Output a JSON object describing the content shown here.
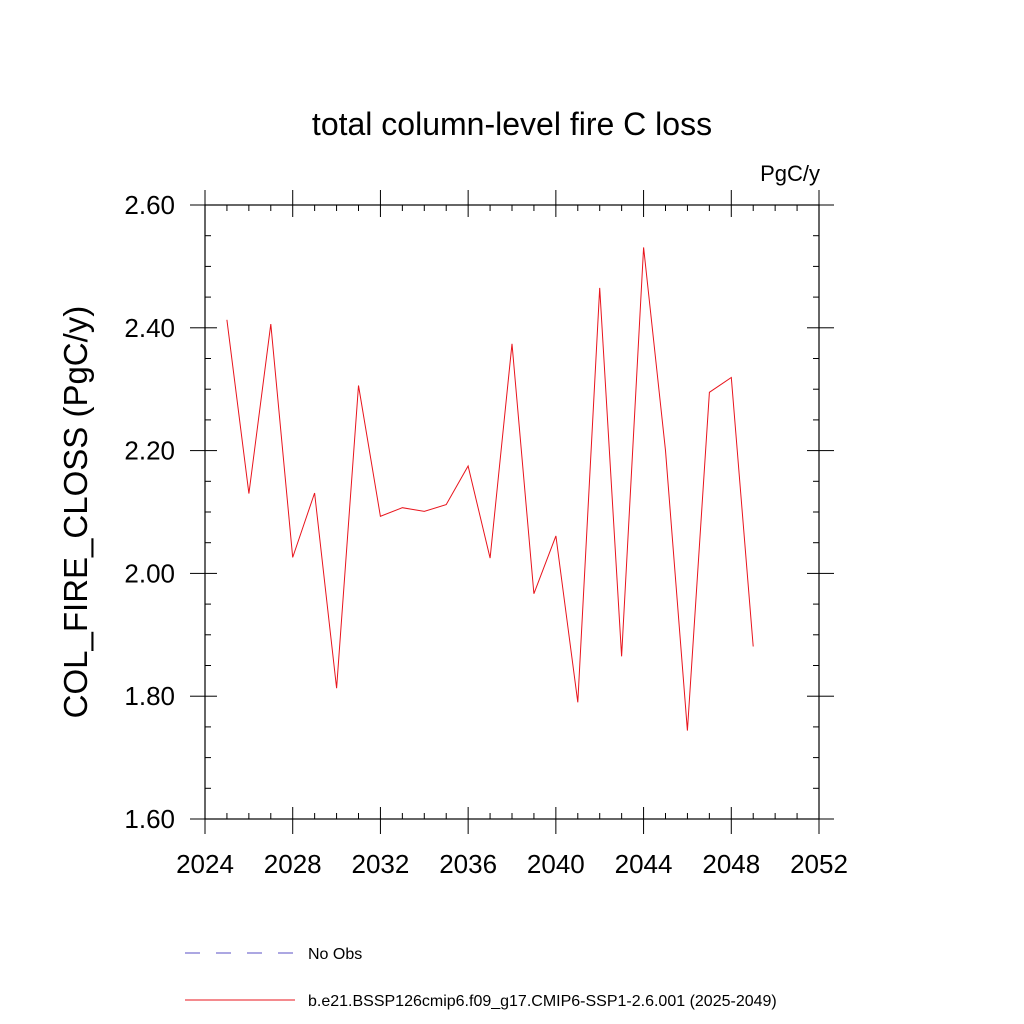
{
  "chart_data": {
    "type": "line",
    "title": "total column-level fire C loss",
    "units": "PgC/y",
    "ylabel": "COL_FIRE_CLOSS  (PgC/y)",
    "xlabel": "",
    "xlim": [
      2024,
      2052
    ],
    "ylim": [
      1.6,
      2.6
    ],
    "x_ticks": [
      2024,
      2028,
      2032,
      2036,
      2040,
      2044,
      2048,
      2052
    ],
    "x_tick_labels": [
      "2024",
      "2028",
      "2032",
      "2036",
      "2040",
      "2044",
      "2048",
      "2052"
    ],
    "y_ticks": [
      1.6,
      1.8,
      2.0,
      2.2,
      2.4,
      2.6
    ],
    "y_tick_labels": [
      "1.60",
      "1.80",
      "2.00",
      "2.20",
      "2.40",
      "2.60"
    ],
    "grid": false,
    "legend_position": "bottom",
    "series": [
      {
        "name": "No Obs",
        "color": "#5a4fc4",
        "style": "dashed",
        "x": [],
        "values": []
      },
      {
        "name": "b.e21.BSSP126cmip6.f09_g17.CMIP6-SSP1-2.6.001 (2025-2049)",
        "color": "#e8141c",
        "style": "solid",
        "x": [
          2025,
          2026,
          2027,
          2028,
          2029,
          2030,
          2031,
          2032,
          2033,
          2034,
          2035,
          2036,
          2037,
          2038,
          2039,
          2040,
          2041,
          2042,
          2043,
          2044,
          2045,
          2046,
          2047,
          2048,
          2049
        ],
        "values": [
          2.413,
          2.13,
          2.406,
          2.026,
          2.131,
          1.813,
          2.306,
          2.093,
          2.107,
          2.101,
          2.112,
          2.175,
          2.025,
          2.374,
          1.967,
          2.061,
          1.79,
          2.465,
          1.865,
          2.531,
          2.2,
          1.744,
          2.295,
          2.319,
          1.881
        ]
      }
    ]
  }
}
